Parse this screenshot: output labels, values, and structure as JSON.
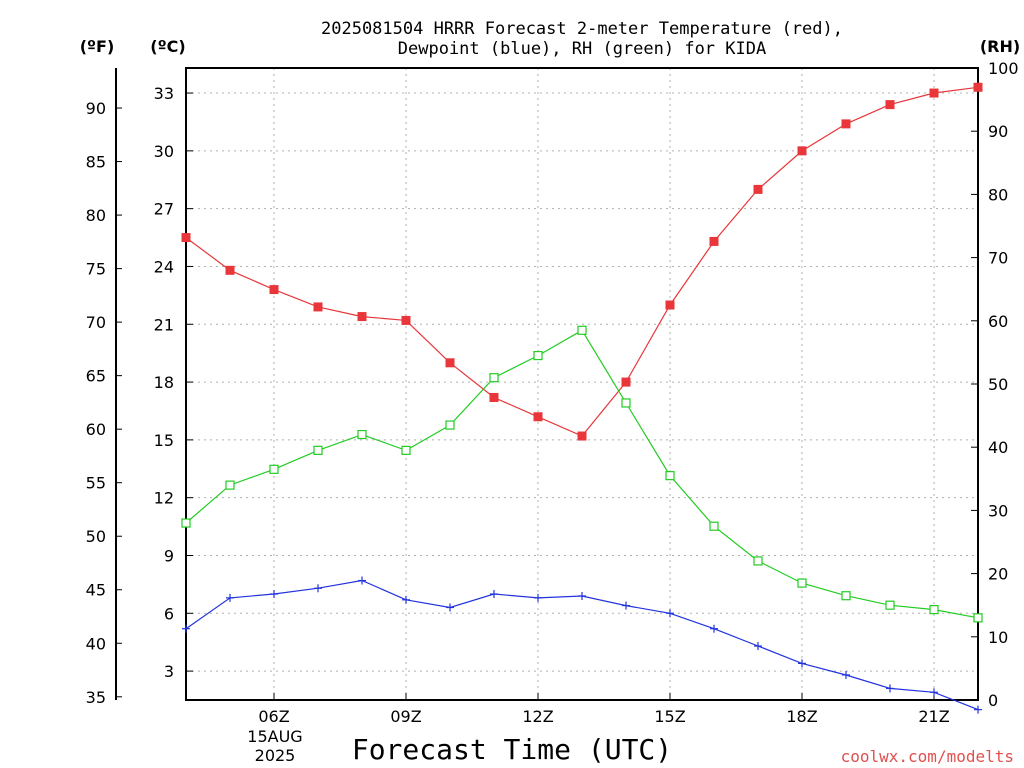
{
  "chart_data": {
    "type": "line",
    "title_line1": "2025081504 HRRR Forecast 2-meter Temperature (red),",
    "title_line2": "Dewpoint (blue), RH (green) for KIDA",
    "xlabel": "Forecast Time (UTC)",
    "credit": "coolwx.com/modelts",
    "left_far_unit": "(ºF)",
    "left_unit": "(ºC)",
    "right_unit": "(RH)",
    "x_hours": [
      4,
      5,
      6,
      7,
      8,
      9,
      10,
      11,
      12,
      13,
      14,
      15,
      16,
      17,
      18,
      19,
      20,
      21,
      22
    ],
    "x_tick_hours": [
      6,
      9,
      12,
      15,
      18,
      21
    ],
    "x_tick_labels": [
      "06Z",
      "09Z",
      "12Z",
      "15Z",
      "18Z",
      "21Z"
    ],
    "x_date_line1": "15AUG",
    "x_date_line2": "2025",
    "xlim": [
      4,
      22
    ],
    "ylim_c": [
      1.5,
      34.3
    ],
    "c_ticks": [
      3,
      6,
      9,
      12,
      15,
      18,
      21,
      24,
      27,
      30,
      33
    ],
    "f_ticks": [
      35,
      40,
      45,
      50,
      55,
      60,
      65,
      70,
      75,
      80,
      85,
      90
    ],
    "rh_ticks": [
      0,
      10,
      20,
      30,
      40,
      50,
      60,
      70,
      80,
      90,
      100
    ],
    "rh_lim": [
      0,
      100
    ],
    "series": [
      {
        "name": "2-meter Temperature",
        "color": "#e8363a",
        "axis": "C",
        "marker": "filled-square",
        "values": [
          25.5,
          23.8,
          22.8,
          21.9,
          21.4,
          21.2,
          19.0,
          17.2,
          16.2,
          15.2,
          18.0,
          22.0,
          25.3,
          28.0,
          30.0,
          31.4,
          32.4,
          33.0,
          33.3
        ]
      },
      {
        "name": "Dewpoint",
        "color": "#2233dd",
        "axis": "C",
        "marker": "plus",
        "values": [
          5.2,
          6.8,
          7.0,
          7.3,
          7.7,
          6.7,
          6.3,
          7.0,
          6.8,
          6.9,
          6.4,
          6.0,
          5.2,
          4.3,
          3.4,
          2.8,
          2.1,
          1.9,
          1.0
        ]
      },
      {
        "name": "RH",
        "color": "#22cc22",
        "axis": "RH",
        "marker": "open-square",
        "values": [
          28,
          34,
          36.5,
          39.5,
          42,
          39.5,
          43.5,
          51,
          54.5,
          58.5,
          47,
          35.5,
          27.5,
          22,
          18.5,
          16.5,
          15,
          14.3,
          13
        ]
      }
    ]
  }
}
